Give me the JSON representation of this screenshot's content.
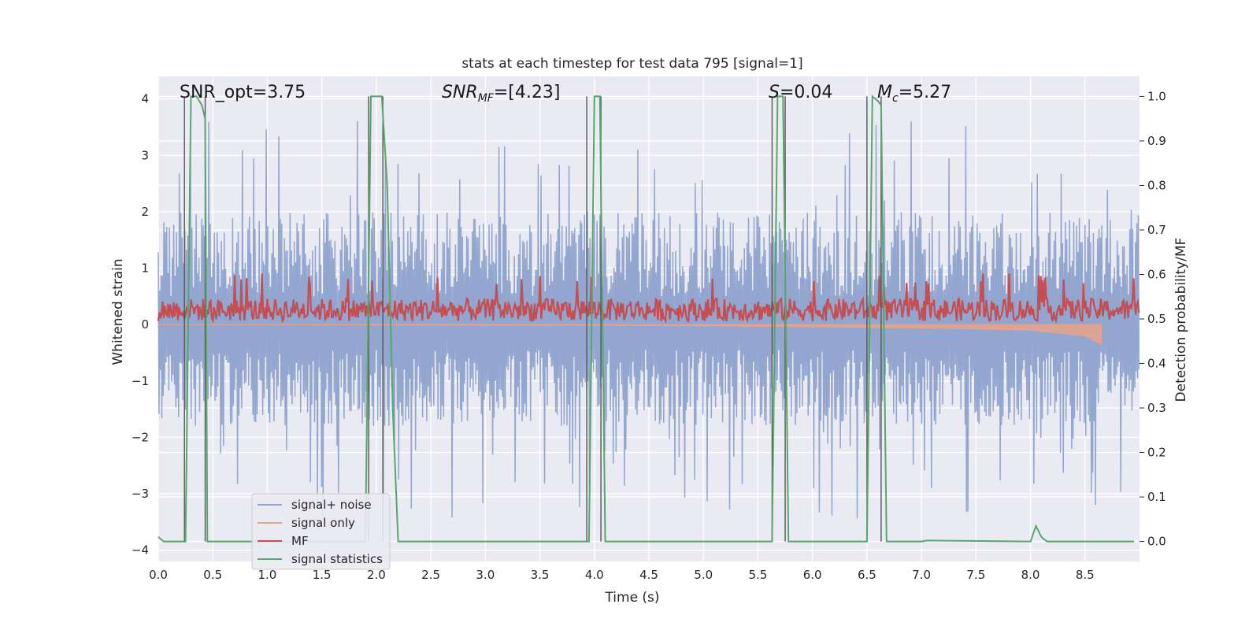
{
  "chart_data": {
    "type": "line",
    "title": "stats at each timestep for test data 795 [signal=1]",
    "xlabel": "Time (s)",
    "ylabel": "Whitened strain",
    "y2label": "Detection probability/MF",
    "xlim": [
      0,
      9.0
    ],
    "ylim": [
      -4.2,
      4.4
    ],
    "y2lim": [
      -0.045,
      1.045
    ],
    "xticks": [
      "0.0",
      "0.5",
      "1.0",
      "1.5",
      "2.0",
      "2.5",
      "3.0",
      "3.5",
      "4.0",
      "4.5",
      "5.0",
      "5.5",
      "6.0",
      "6.5",
      "7.0",
      "7.5",
      "8.0",
      "8.5"
    ],
    "xtick_values": [
      0,
      0.5,
      1,
      1.5,
      2,
      2.5,
      3,
      3.5,
      4,
      4.5,
      5,
      5.5,
      6,
      6.5,
      7,
      7.5,
      8,
      8.5
    ],
    "yticks": [
      "−4",
      "−3",
      "−2",
      "−1",
      "0",
      "1",
      "2",
      "3",
      "4"
    ],
    "ytick_values": [
      -4,
      -3,
      -2,
      -1,
      0,
      1,
      2,
      3,
      4
    ],
    "y2ticks": [
      "0.0",
      "0.1",
      "0.2",
      "0.3",
      "0.4",
      "0.5",
      "0.6",
      "0.7",
      "0.8",
      "0.9",
      "1.0"
    ],
    "y2tick_values": [
      0,
      0.1,
      0.2,
      0.3,
      0.4,
      0.5,
      0.6,
      0.7,
      0.8,
      0.9,
      1.0
    ],
    "grid": true,
    "legend_position": "lower-left",
    "annotations": {
      "snr_opt": "SNR_opt=3.75",
      "snr_mf_main": "SNR",
      "snr_mf_sub": "MF",
      "snr_mf_value": "=[4.23]",
      "s_main": "S",
      "s_value": "=0.04",
      "mc_main": "M",
      "mc_sub": "c",
      "mc_value": "=5.27"
    },
    "series": [
      {
        "name": "signal+ noise",
        "color": "#92a6cf",
        "envelope_upper": 2.0,
        "envelope_lower": -1.8,
        "peak_max": 3.65,
        "peak_min": -3.5
      },
      {
        "name": "signal only",
        "color": "#e8a38a",
        "x": [
          0,
          3,
          5,
          6,
          7,
          8,
          8.5,
          8.65
        ],
        "y": [
          0,
          -0.01,
          -0.02,
          -0.04,
          -0.06,
          -0.1,
          -0.2,
          -0.35
        ]
      },
      {
        "name": "MF",
        "color": "#c44e52",
        "mean": 0.26,
        "spread": 0.2
      },
      {
        "name": "signal statistics",
        "color": "#55a868",
        "x": [
          0,
          0.05,
          0.1,
          0.25,
          0.3,
          0.35,
          0.4,
          0.43,
          0.45,
          0.5,
          1.9,
          1.95,
          2.0,
          2.05,
          2.1,
          2.15,
          2.2,
          3.95,
          4.0,
          4.05,
          4.1,
          5.63,
          5.68,
          5.7,
          5.73,
          5.78,
          6.5,
          6.55,
          6.6,
          6.63,
          6.68,
          7.0,
          7.05,
          8.0,
          8.05,
          8.1,
          8.15,
          8.95
        ],
        "y": [
          0.01,
          0.0,
          0.0,
          0.0,
          1.0,
          1.0,
          0.98,
          0.95,
          0.0,
          0.0,
          0.0,
          1.0,
          1.0,
          1.0,
          0.8,
          0.3,
          0.0,
          0.0,
          1.0,
          1.0,
          0.0,
          0.0,
          1.0,
          1.0,
          1.0,
          0.0,
          0.0,
          1.0,
          0.99,
          0.98,
          0.0,
          0.0,
          0.002,
          0.0,
          0.035,
          0.01,
          0.0,
          0.0
        ]
      }
    ],
    "vlines": [
      0.24,
      0.43,
      1.93,
      2.06,
      3.93,
      4.06,
      5.63,
      5.75,
      6.5,
      6.63
    ],
    "vline_color": "#555555"
  }
}
